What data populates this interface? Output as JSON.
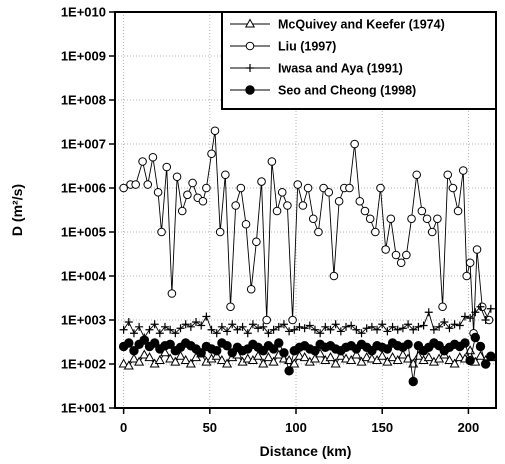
{
  "chart_data": {
    "type": "line",
    "xlabel": "Distance (km)",
    "ylabel": "D (m²/s)",
    "xlim": [
      -5,
      216
    ],
    "ylim": [
      10,
      10000000000.0
    ],
    "yscale": "log",
    "x_ticks": [
      0,
      50,
      100,
      150,
      200
    ],
    "x_tick_labels": [
      "0",
      "50",
      "100",
      "150",
      "200"
    ],
    "y_ticks": [
      10.0,
      100.0,
      1000.0,
      10000.0,
      100000.0,
      1000000.0,
      10000000.0,
      100000000.0,
      1000000000.0,
      10000000000.0
    ],
    "y_tick_labels": [
      "1E+001",
      "1E+002",
      "1E+003",
      "1E+004",
      "1E+005",
      "1E+006",
      "1E+007",
      "1E+008",
      "1E+009",
      "1E+010"
    ],
    "grid": true,
    "legend_position": "top-right",
    "series": [
      {
        "name": "McQuivey and Keefer (1974)",
        "marker": "triangle",
        "x": [
          0,
          3,
          6,
          9,
          12,
          15,
          18,
          21,
          24,
          27,
          30,
          33,
          36,
          39,
          42,
          45,
          48,
          51,
          54,
          57,
          60,
          63,
          66,
          69,
          72,
          75,
          78,
          81,
          84,
          87,
          90,
          93,
          96,
          99,
          102,
          105,
          108,
          111,
          114,
          117,
          120,
          123,
          126,
          129,
          132,
          135,
          138,
          141,
          144,
          147,
          150,
          153,
          156,
          159,
          162,
          165,
          168,
          171,
          174,
          177,
          180,
          183,
          186,
          189,
          192,
          195,
          198,
          201,
          204,
          207,
          210,
          213
        ],
        "y": [
          100,
          90,
          130,
          110,
          160,
          140,
          100,
          120,
          180,
          130,
          110,
          150,
          120,
          100,
          140,
          170,
          110,
          130,
          150,
          120,
          100,
          140,
          160,
          110,
          130,
          120,
          150,
          100,
          140,
          110,
          160,
          130,
          120,
          100,
          150,
          140,
          110,
          130,
          170,
          120,
          140,
          100,
          150,
          130,
          120,
          160,
          110,
          140,
          130,
          120,
          150,
          110,
          140,
          120,
          160,
          130,
          100,
          150,
          120,
          140,
          110,
          130,
          160,
          120,
          100,
          140,
          130,
          200,
          110,
          150,
          120,
          140
        ]
      },
      {
        "name": "Liu (1997)",
        "marker": "circle",
        "x": [
          0,
          4,
          7,
          11,
          14,
          17,
          20,
          22,
          25,
          28,
          31,
          34,
          37,
          40,
          43,
          46,
          48,
          51,
          53,
          56,
          59,
          62,
          65,
          68,
          71,
          74,
          77,
          80,
          83,
          86,
          89,
          92,
          95,
          98,
          101,
          104,
          107,
          110,
          113,
          116,
          119,
          122,
          125,
          128,
          131,
          134,
          137,
          140,
          143,
          146,
          149,
          152,
          155,
          158,
          161,
          164,
          167,
          170,
          173,
          176,
          179,
          182,
          185,
          188,
          191,
          194,
          197,
          199,
          201,
          203,
          205,
          208,
          212
        ],
        "y": [
          1000000,
          1200000,
          1200000,
          4000000,
          1200000,
          5000000,
          800000,
          100000,
          3000000,
          4000,
          1800000,
          300000,
          700000,
          1300000,
          600000,
          500000,
          1000000,
          6000000,
          20000000,
          100000,
          2000000,
          2000,
          400000,
          1000000,
          150000,
          5000,
          60000,
          1400000,
          1000,
          4000000,
          300000,
          800000,
          400000,
          1000,
          1200000,
          400000,
          1000000,
          200000,
          100000,
          1000000,
          800000,
          10000,
          500000,
          1000000,
          1000000,
          10000000,
          500000,
          300000,
          200000,
          100000,
          1000000,
          40000,
          200000,
          30000,
          20000,
          30000,
          200000,
          2000000,
          300000,
          200000,
          100000,
          200000,
          2000,
          2000000,
          1000000,
          300000,
          2500000,
          10000,
          20000,
          500,
          40000,
          2000,
          1000
        ]
      },
      {
        "name": "Iwasa and Aya (1991)",
        "marker": "plus",
        "x": [
          0,
          3,
          6,
          9,
          12,
          15,
          18,
          21,
          24,
          27,
          30,
          33,
          36,
          39,
          42,
          45,
          48,
          51,
          54,
          57,
          60,
          63,
          66,
          69,
          72,
          75,
          78,
          81,
          84,
          87,
          90,
          93,
          96,
          99,
          102,
          105,
          108,
          111,
          114,
          117,
          120,
          123,
          126,
          129,
          132,
          135,
          138,
          141,
          144,
          147,
          150,
          153,
          156,
          159,
          162,
          165,
          168,
          171,
          174,
          177,
          180,
          183,
          186,
          189,
          192,
          195,
          198,
          201,
          204,
          207,
          210,
          213
        ],
        "y": [
          600,
          900,
          500,
          700,
          400,
          600,
          800,
          500,
          700,
          600,
          500,
          650,
          800,
          700,
          900,
          750,
          1200,
          600,
          500,
          700,
          550,
          800,
          600,
          700,
          500,
          800,
          650,
          700,
          500,
          600,
          700,
          800,
          550,
          600,
          700,
          650,
          750,
          600,
          500,
          700,
          600,
          800,
          550,
          700,
          750,
          600,
          500,
          650,
          700,
          600,
          800,
          550,
          700,
          600,
          650,
          800,
          600,
          700,
          750,
          1500,
          600,
          700,
          900,
          650,
          800,
          750,
          1200,
          1100,
          1500,
          2000,
          1000,
          1800
        ]
      },
      {
        "name": "Seo and Cheong (1998)",
        "marker": "filled-circle",
        "x": [
          0,
          3,
          6,
          9,
          12,
          15,
          18,
          21,
          24,
          27,
          30,
          33,
          36,
          39,
          42,
          45,
          48,
          51,
          54,
          57,
          60,
          63,
          66,
          69,
          72,
          75,
          78,
          81,
          84,
          87,
          90,
          93,
          96,
          99,
          102,
          105,
          108,
          111,
          114,
          117,
          120,
          123,
          126,
          129,
          132,
          135,
          138,
          141,
          144,
          147,
          150,
          153,
          156,
          159,
          162,
          165,
          168,
          171,
          174,
          177,
          180,
          183,
          186,
          189,
          192,
          195,
          198,
          201,
          204,
          207,
          210,
          213
        ],
        "y": [
          250,
          300,
          200,
          280,
          350,
          250,
          300,
          220,
          260,
          280,
          200,
          240,
          300,
          260,
          220,
          180,
          250,
          220,
          200,
          300,
          260,
          180,
          240,
          200,
          220,
          280,
          240,
          200,
          260,
          220,
          300,
          180,
          70,
          200,
          240,
          260,
          220,
          200,
          280,
          240,
          260,
          220,
          200,
          240,
          260,
          220,
          280,
          240,
          200,
          260,
          240,
          220,
          300,
          260,
          240,
          280,
          40,
          260,
          200,
          240,
          300,
          260,
          200,
          240,
          280,
          250,
          300,
          120,
          400,
          250,
          100,
          150
        ]
      }
    ]
  }
}
